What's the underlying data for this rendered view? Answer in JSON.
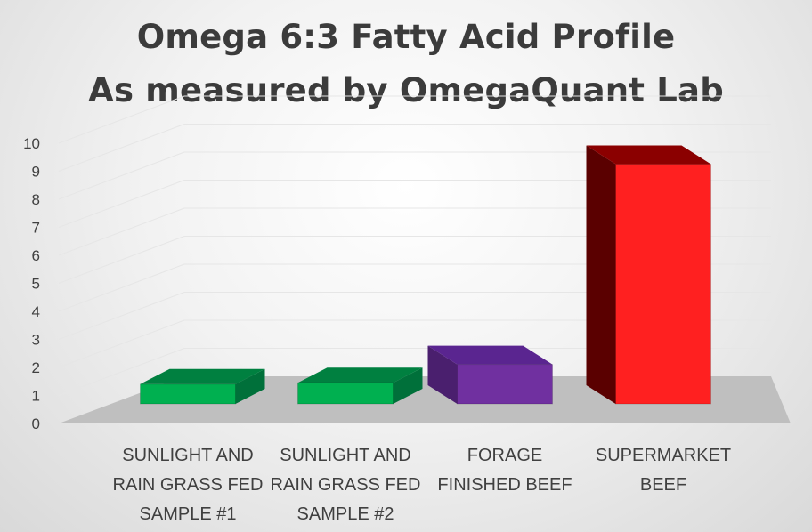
{
  "chart_data": {
    "type": "bar",
    "title": "Omega 6:3 Fatty Acid Profile",
    "subtitle": "As measured by OmegaQuant Lab",
    "categories": [
      [
        "SUNLIGHT AND",
        "RAIN GRASS FED",
        "SAMPLE #1"
      ],
      [
        "SUNLIGHT AND",
        "RAIN GRASS FED",
        "SAMPLE #2"
      ],
      [
        "FORAGE",
        "FINISHED BEEF"
      ],
      [
        "SUPERMARKET",
        "BEEF"
      ]
    ],
    "values": [
      0.7,
      0.75,
      1.4,
      8.5
    ],
    "bar_colors": [
      "#00b050",
      "#00b050",
      "#7030a0",
      "#ff2020"
    ],
    "bar_side_colors": [
      "#00703a",
      "#00703a",
      "#4a1f6e",
      "#5a0000"
    ],
    "bar_top_colors": [
      "#008040",
      "#008040",
      "#5a2590",
      "#8b0000"
    ],
    "ylim": [
      0,
      10
    ],
    "yticks": [
      "0",
      "1",
      "2",
      "3",
      "4",
      "5",
      "6",
      "7",
      "8",
      "9",
      "10"
    ],
    "grid": true,
    "legend": "none",
    "style": "3d"
  }
}
